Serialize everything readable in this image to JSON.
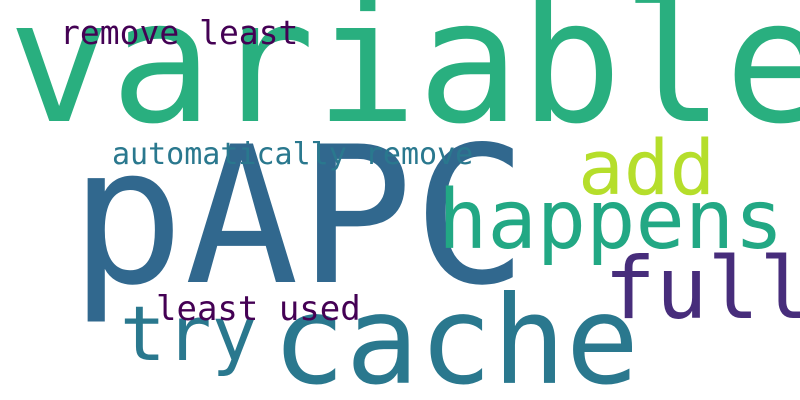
{
  "words": [
    {
      "text": "variable",
      "color": "#29af7f"
    },
    {
      "text": "pAPC",
      "color": "#31688e"
    },
    {
      "text": "cache",
      "color": "#2a788e"
    },
    {
      "text": "happens",
      "color": "#22a884"
    },
    {
      "text": "full",
      "color": "#472d7b"
    },
    {
      "text": "add",
      "color": "#b5de2b"
    },
    {
      "text": "try",
      "color": "#2a788e"
    },
    {
      "text": "automatically remove",
      "color": "#2a788e"
    },
    {
      "text": "remove least",
      "color": "#440154"
    },
    {
      "text": "least used",
      "color": "#440154"
    }
  ]
}
